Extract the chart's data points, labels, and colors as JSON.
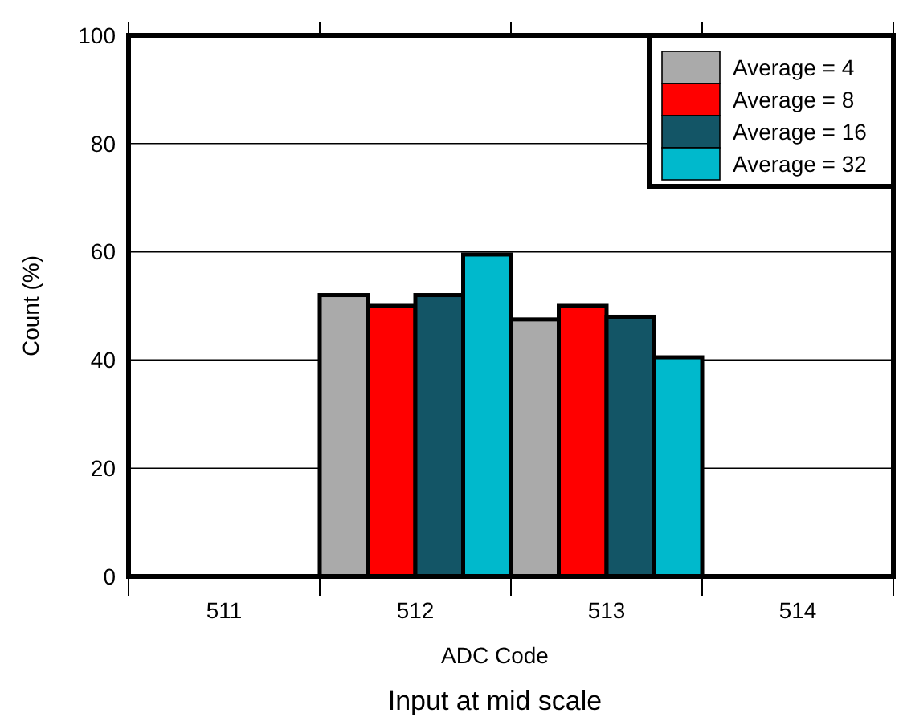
{
  "chart_data": {
    "type": "bar",
    "title": "Input at mid scale",
    "xlabel": "ADC Code",
    "ylabel": "Count (%)",
    "categories": [
      "511",
      "512",
      "513",
      "514"
    ],
    "series": [
      {
        "name": "Average = 4",
        "color": "#aaaaaa",
        "values": [
          0,
          52,
          47.5,
          0
        ]
      },
      {
        "name": "Average = 8",
        "color": "#ff0000",
        "values": [
          0,
          50,
          50,
          0
        ]
      },
      {
        "name": "Average = 16",
        "color": "#135566",
        "values": [
          0,
          52,
          48,
          0
        ]
      },
      {
        "name": "Average = 32",
        "color": "#00b9cc",
        "values": [
          0,
          59.5,
          40.5,
          0
        ]
      }
    ],
    "ylim": [
      0,
      100
    ],
    "yticks": [
      0,
      20,
      40,
      60,
      80,
      100
    ],
    "grid": "y",
    "legend": "top right"
  }
}
